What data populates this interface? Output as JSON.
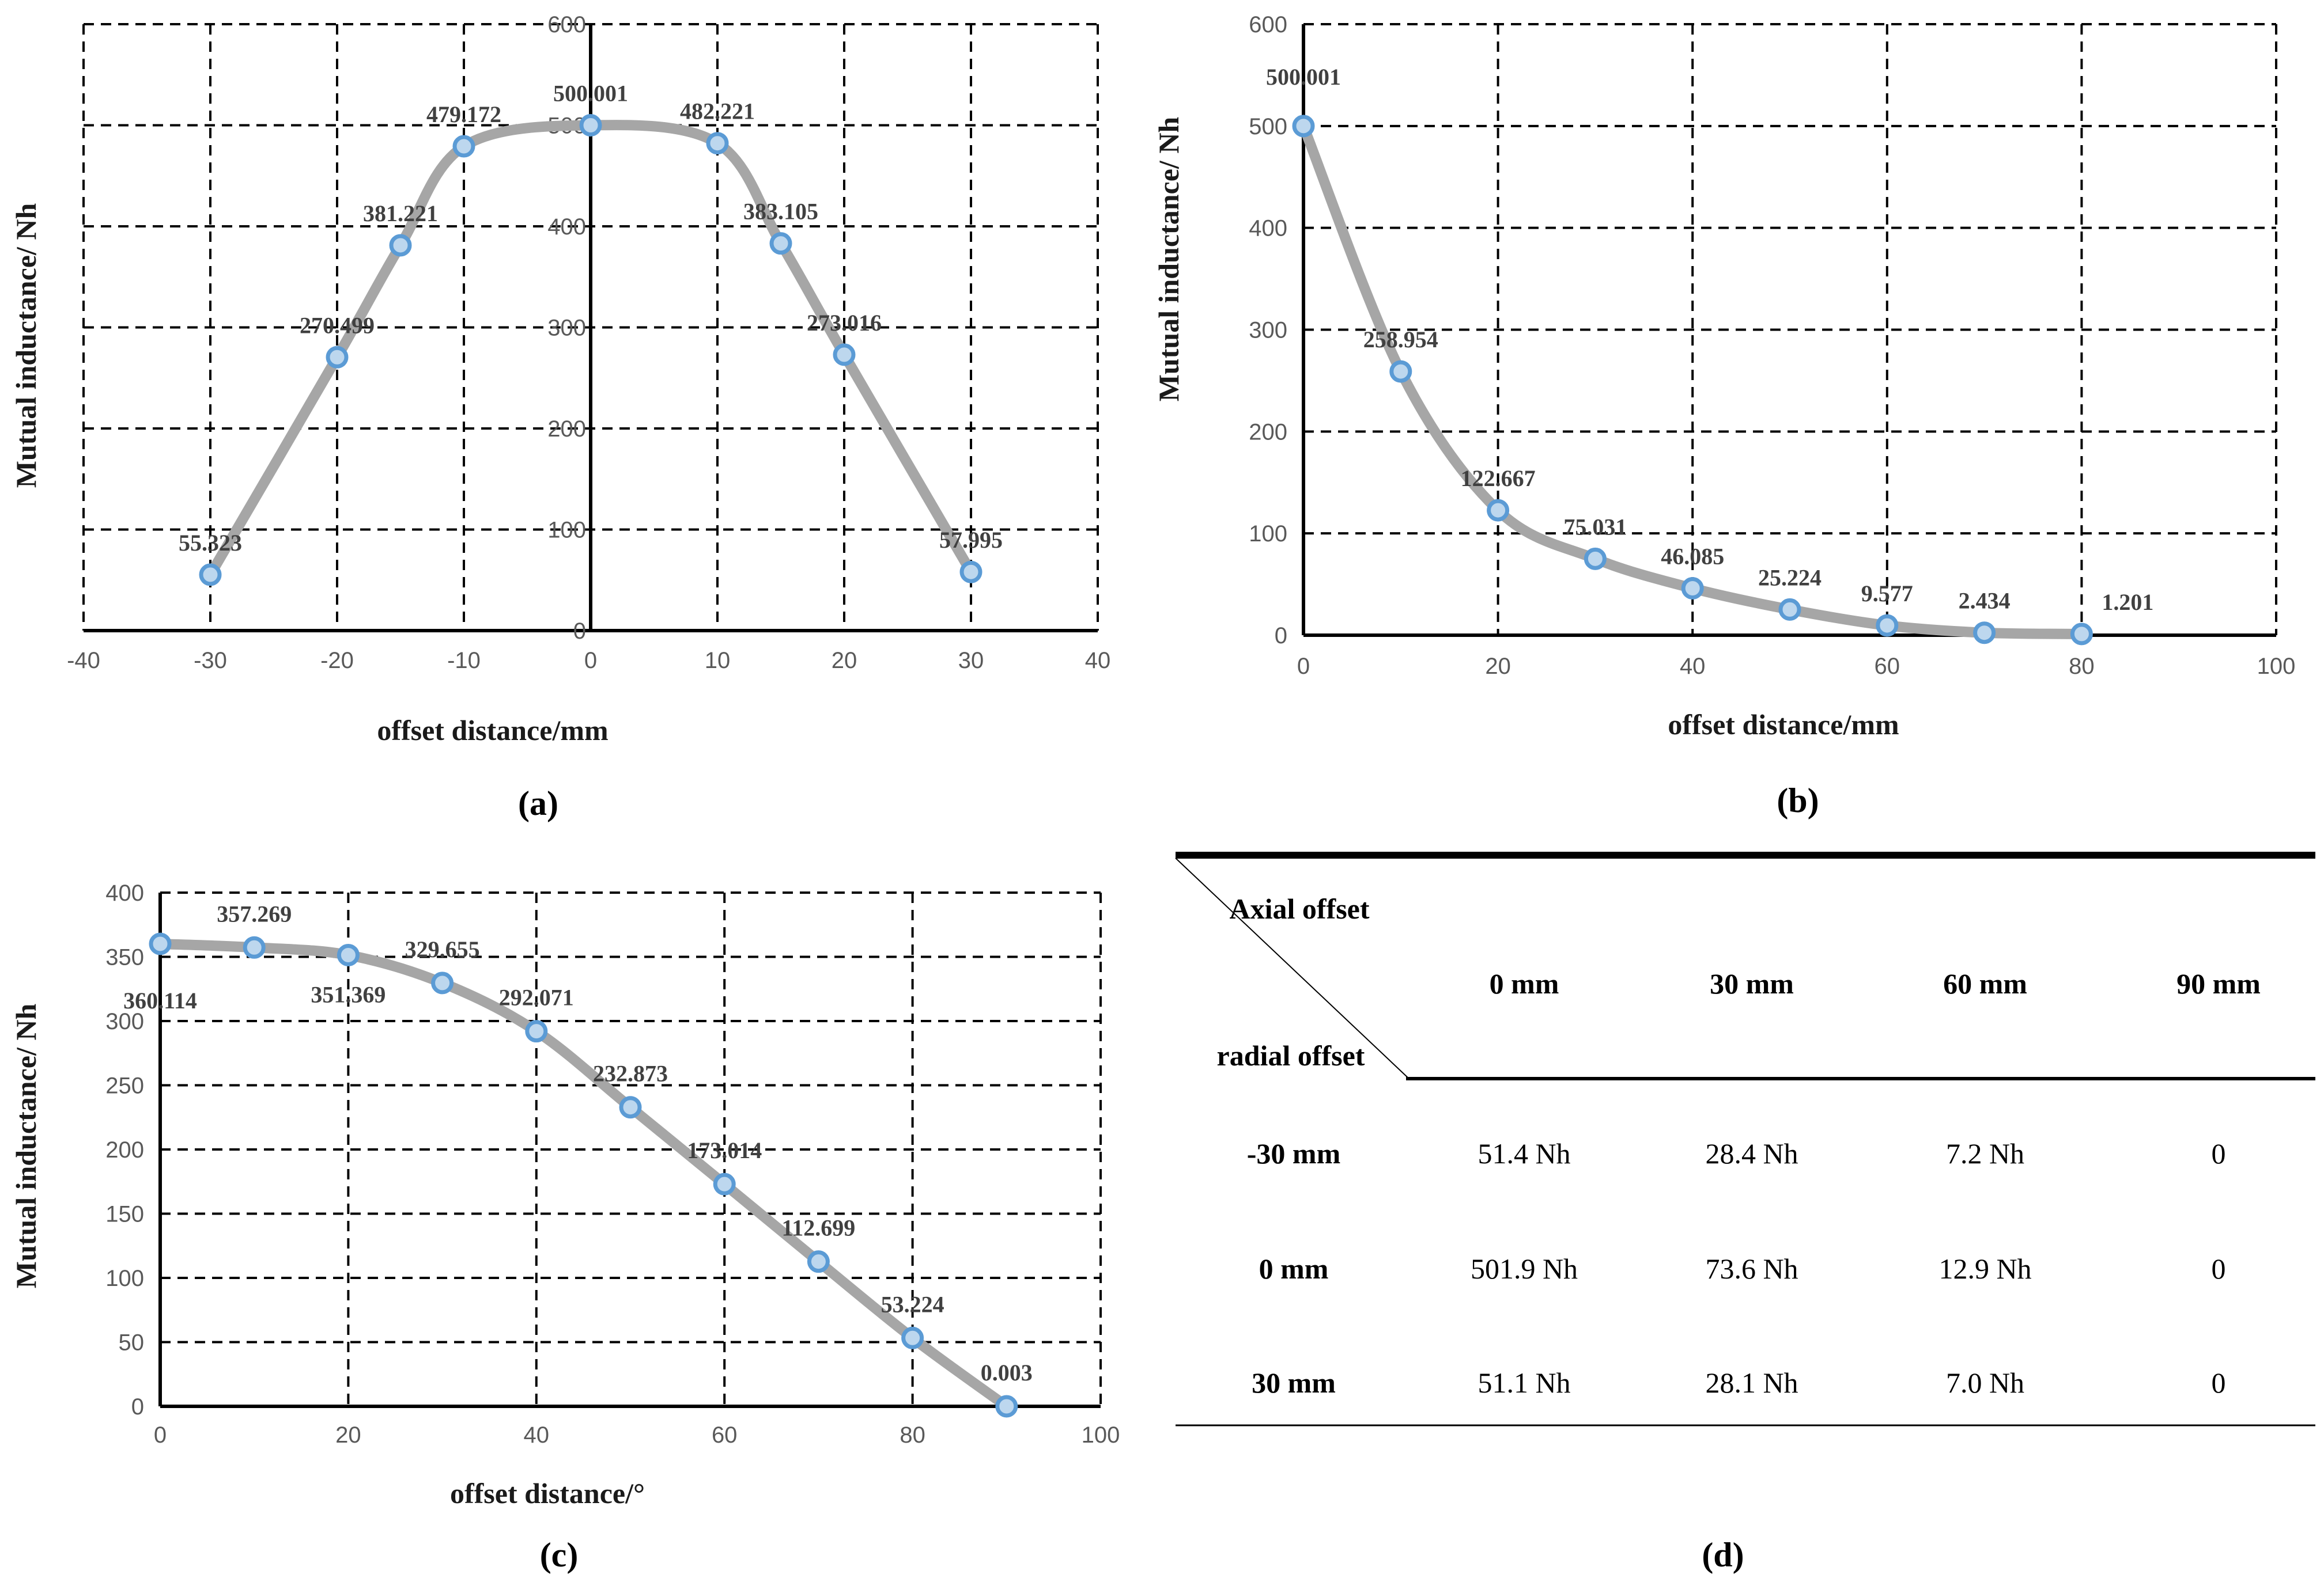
{
  "colors": {
    "line": "#a6a6a6",
    "marker_fill": "#bdd7ee",
    "marker_stroke": "#5b9bd5",
    "grid": "#000000"
  },
  "chart_data": [
    {
      "id": "a",
      "type": "line",
      "panel_label": "(a)",
      "xlabel": "offset distance/mm",
      "ylabel": "Mutual inductance/ Nh",
      "xlim": [
        -40,
        40
      ],
      "ylim": [
        0,
        600
      ],
      "x_ticks": [
        "-40",
        "-30",
        "-20",
        "-10",
        "0",
        "10",
        "20",
        "30",
        "40"
      ],
      "y_ticks": [
        "0",
        "100",
        "200",
        "300",
        "400",
        "500",
        "600"
      ],
      "x": [
        -30,
        -20,
        -15,
        -10,
        0,
        10,
        15,
        20,
        30
      ],
      "y": [
        55.323,
        270.499,
        381.221,
        479.172,
        500.001,
        482.221,
        383.105,
        273.016,
        57.995
      ],
      "labels": [
        "55.323",
        "270.499",
        "381.221",
        "479.172",
        "500.001",
        "482.221",
        "383.105",
        "273.016",
        "57.995"
      ],
      "grid": true
    },
    {
      "id": "b",
      "type": "line",
      "panel_label": "(b)",
      "xlabel": "offset distance/mm",
      "ylabel": "Mutual inductance/ Nh",
      "xlim": [
        0,
        100
      ],
      "ylim": [
        0,
        600
      ],
      "x_ticks": [
        "0",
        "20",
        "40",
        "60",
        "80",
        "100"
      ],
      "y_ticks": [
        "0",
        "100",
        "200",
        "300",
        "400",
        "500",
        "600"
      ],
      "x": [
        0,
        10,
        20,
        30,
        40,
        50,
        60,
        70,
        80
      ],
      "y": [
        500.001,
        258.954,
        122.667,
        75.031,
        46.085,
        25.224,
        9.577,
        2.434,
        1.201
      ],
      "labels": [
        "500.001",
        "258.954",
        "122.667",
        "75.031",
        "46.085",
        "25.224",
        "9.577",
        "2.434",
        "1.201"
      ],
      "grid": true
    },
    {
      "id": "c",
      "type": "line",
      "panel_label": "(c)",
      "xlabel": "offset distance/°",
      "ylabel": "Mutual inductance/ Nh",
      "xlim": [
        0,
        100
      ],
      "ylim": [
        0,
        400
      ],
      "x_ticks": [
        "0",
        "20",
        "40",
        "60",
        "80",
        "100"
      ],
      "y_ticks": [
        "0",
        "50",
        "100",
        "150",
        "200",
        "250",
        "300",
        "350",
        "400"
      ],
      "x": [
        0,
        10,
        20,
        30,
        40,
        50,
        60,
        70,
        80,
        90
      ],
      "y": [
        360.114,
        357.269,
        351.369,
        329.655,
        292.071,
        232.873,
        173.014,
        112.699,
        53.224,
        0.003
      ],
      "labels": [
        "360.114",
        "357.269",
        "351.369",
        "329.655",
        "292.071",
        "232.873",
        "173.014",
        "112.699",
        "53.224",
        "0.003"
      ],
      "grid": true
    },
    {
      "id": "d",
      "type": "table",
      "panel_label": "(d)",
      "corner_top": "Axial offset",
      "corner_bottom": "radial offset",
      "columns": [
        "0 mm",
        "30 mm",
        "60 mm",
        "90 mm"
      ],
      "rows": [
        {
          "label": "-30 mm",
          "cells": [
            "51.4 Nh",
            "28.4 Nh",
            "7.2 Nh",
            "0"
          ]
        },
        {
          "label": "0 mm",
          "cells": [
            "501.9 Nh",
            "73.6 Nh",
            "12.9 Nh",
            "0"
          ]
        },
        {
          "label": "30 mm",
          "cells": [
            "51.1 Nh",
            "28.1 Nh",
            "7.0 Nh",
            "0"
          ]
        }
      ]
    }
  ]
}
